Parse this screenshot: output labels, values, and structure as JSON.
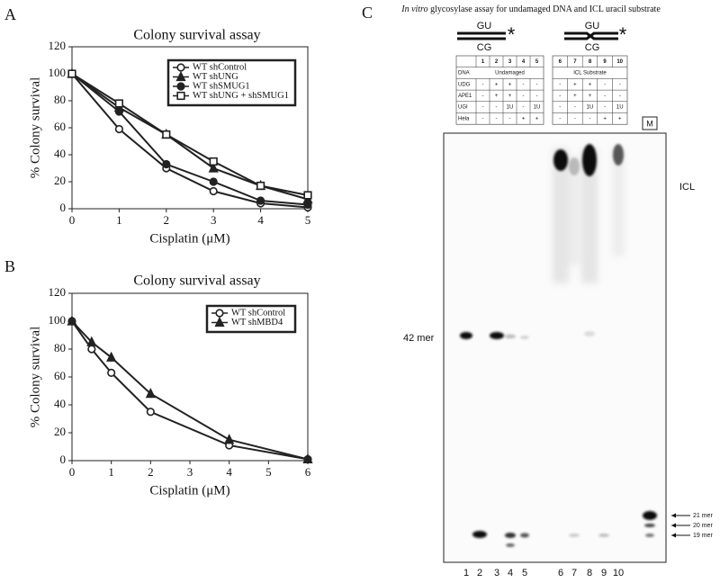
{
  "panels": {
    "a": "A",
    "b": "B",
    "c": "C"
  },
  "chart_data": [
    {
      "type": "line",
      "title": "Colony survival assay",
      "x_label": "Cisplatin (μM)",
      "y_label": "% Colony survival",
      "x": [
        0,
        1,
        2,
        3,
        4,
        5
      ],
      "xlim": [
        0,
        5
      ],
      "xticks": [
        0,
        1,
        2,
        3,
        4,
        5
      ],
      "ylim": [
        0,
        120
      ],
      "yticks": [
        0,
        20,
        40,
        60,
        80,
        100,
        120
      ],
      "series": [
        {
          "name": "WT shControl",
          "color": "#222222",
          "marker": "open-circle",
          "values": [
            100,
            59,
            30,
            13,
            4,
            1
          ]
        },
        {
          "name": "WT shUNG",
          "color": "#222222",
          "marker": "filled-triangle",
          "values": [
            100,
            75,
            55,
            30,
            17,
            7
          ]
        },
        {
          "name": "WT shSMUG1",
          "color": "#222222",
          "marker": "filled-circle",
          "values": [
            100,
            72,
            33,
            20,
            6,
            3
          ]
        },
        {
          "name": "WT shUNG + shSMUG1",
          "color": "#222222",
          "marker": "open-square",
          "values": [
            100,
            78,
            55,
            35,
            17,
            10
          ]
        }
      ]
    },
    {
      "type": "line",
      "title": "Colony survival assay",
      "x_label": "Cisplatin (μM)",
      "y_label": "% Colony survival",
      "x": [
        0,
        0.5,
        1,
        2,
        4,
        6
      ],
      "xlim": [
        0,
        6
      ],
      "xticks": [
        0,
        1,
        2,
        3,
        4,
        5,
        6
      ],
      "ylim": [
        0,
        120
      ],
      "yticks": [
        0,
        20,
        40,
        60,
        80,
        100,
        120
      ],
      "series": [
        {
          "name": "WT shControl",
          "color": "#222222",
          "marker": "open-circle",
          "values": [
            100,
            80,
            63,
            35,
            11,
            1
          ]
        },
        {
          "name": "WT shMBD4",
          "color": "#222222",
          "marker": "filled-triangle",
          "values": [
            100,
            85,
            74,
            48,
            15,
            1
          ]
        }
      ]
    }
  ],
  "gel": {
    "title_italic": "In vitro",
    "title_rest": " glycosylase assay for undamaged DNA and ICL uracil substrate",
    "substrate_top": "GU",
    "substrate_bottom": "CG",
    "asterisk": "*",
    "row_labels": [
      "DNA",
      "UDG",
      "APE1",
      "UGI",
      "Hela"
    ],
    "tables": [
      {
        "lanes": [
          "1",
          "2",
          "3",
          "4",
          "5"
        ],
        "dna": "Undamaged",
        "cells": [
          [
            "-",
            "+",
            "+",
            "-",
            "-"
          ],
          [
            "-",
            "+",
            "+",
            "-",
            "-"
          ],
          [
            "-",
            "-",
            "1U",
            "-",
            "1U"
          ],
          [
            "-",
            "-",
            "-",
            "+",
            "+"
          ]
        ]
      },
      {
        "lanes": [
          "6",
          "7",
          "8",
          "9",
          "10"
        ],
        "dna": "ICL Substrate",
        "cells": [
          [
            "-",
            "+",
            "+",
            "-",
            "-"
          ],
          [
            "-",
            "+",
            "+",
            "-",
            "-"
          ],
          [
            "-",
            "-",
            "1U",
            "-",
            "1U"
          ],
          [
            "-",
            "-",
            "-",
            "+",
            "+"
          ]
        ]
      }
    ],
    "marker_lane": "M",
    "icl": "ICL",
    "band_42": "42 mer",
    "sizes": [
      "21 mer",
      "20 mer",
      "19 mer"
    ],
    "lane_numbers": [
      "1",
      "2",
      "3",
      "4",
      "5",
      "6",
      "7",
      "8",
      "9",
      "10"
    ]
  }
}
